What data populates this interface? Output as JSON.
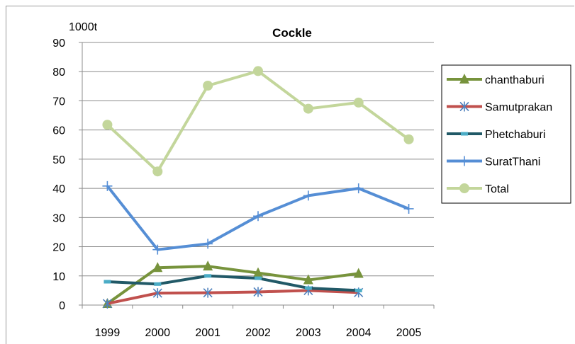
{
  "chart_data": {
    "type": "line",
    "title": "Cockle",
    "ylabel": "1000t",
    "xlabel": "",
    "categories": [
      "1999",
      "2000",
      "2001",
      "2002",
      "2003",
      "2004",
      "2005"
    ],
    "ylim": [
      0,
      90
    ],
    "yticks": [
      0,
      10,
      20,
      30,
      40,
      50,
      60,
      70,
      80,
      90
    ],
    "grid": "horizontal",
    "legend_position": "right",
    "series": [
      {
        "name": "chanthaburi",
        "color": "#77933c",
        "marker": "triangle",
        "values": [
          0.5,
          12.8,
          13.3,
          11.0,
          8.6,
          10.8,
          null
        ]
      },
      {
        "name": "Samutprakan",
        "color": "#c0504d",
        "marker": "asterisk",
        "values": [
          0.5,
          4.1,
          4.2,
          4.5,
          5.0,
          4.3,
          null
        ]
      },
      {
        "name": "Phetchaburi",
        "color": "#215967",
        "marker": "dash",
        "values": [
          8.0,
          7.2,
          10.0,
          9.2,
          5.8,
          5.0,
          null
        ]
      },
      {
        "name": "SuratThani",
        "color": "#558ed5",
        "marker": "plus",
        "values": [
          40.8,
          19.0,
          21.0,
          30.5,
          37.5,
          40.0,
          33.0
        ]
      },
      {
        "name": "Total",
        "color": "#c3d69b",
        "marker": "circle",
        "values": [
          61.8,
          45.8,
          75.2,
          80.2,
          67.3,
          69.4,
          56.8
        ]
      }
    ]
  }
}
